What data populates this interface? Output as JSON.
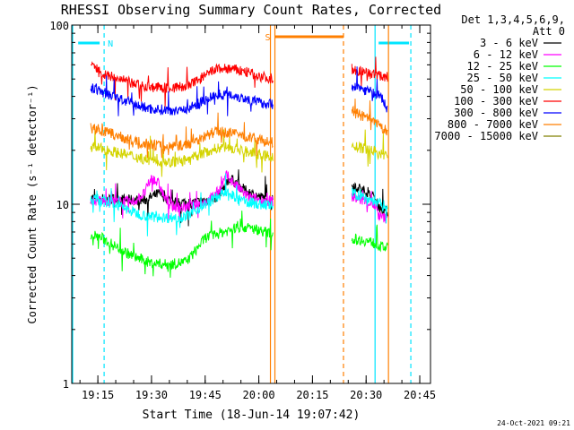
{
  "chart_data": {
    "type": "line",
    "title": "RHESSI Observing Summary Count Rates, Corrected",
    "xlabel": "Start Time (18-Jun-14 19:07:42)",
    "ylabel": "Corrected Count Rate (s⁻¹ detector⁻¹)",
    "y_scale": "log",
    "ylim": [
      1,
      100
    ],
    "xlim": [
      "19:07:42",
      "20:48:00"
    ],
    "x_ticks": [
      "19:15",
      "19:30",
      "19:45",
      "20:00",
      "20:15",
      "20:30",
      "20:45"
    ],
    "y_ticks": [
      "1",
      "10",
      "100"
    ],
    "legend": {
      "header": [
        "Det 1,3,4,5,6,9,",
        "Att 0"
      ],
      "placement": "right"
    },
    "flags": [
      {
        "label": "N",
        "color": "#00e5ff",
        "start": "19:09:30",
        "end": "19:16:45"
      },
      {
        "label": "S",
        "color": "#ff7f00",
        "start": "20:04:30",
        "end": "20:23:40"
      }
    ],
    "x_markers": [
      {
        "time": "19:06:30",
        "style": "solid",
        "color": "#00e5ff"
      },
      {
        "time": "19:16:45",
        "style": "dashed",
        "color": "#00e5ff"
      },
      {
        "time": "20:03:15",
        "style": "solid",
        "color": "#ff7f00"
      },
      {
        "time": "20:04:30",
        "style": "solid",
        "color": "#ff7f00"
      },
      {
        "time": "20:23:40",
        "style": "dashed",
        "color": "#ff7f00"
      },
      {
        "time": "20:32:30",
        "style": "solid",
        "color": "#00e5ff"
      },
      {
        "time": "20:36:15",
        "style": "solid",
        "color": "#ff7f00"
      },
      {
        "time": "20:42:30",
        "style": "dashed",
        "color": "#00e5ff"
      }
    ],
    "series": [
      {
        "name": "3 - 6 keV",
        "color": "#000000",
        "segments": [
          {
            "x": [
              "19:13",
              "19:28",
              "19:32",
              "19:36",
              "19:42",
              "19:48",
              "19:52",
              "19:56",
              "20:00",
              "20:04"
            ],
            "y": [
              10.8,
              10.5,
              11.5,
              10.3,
              10.2,
              10.8,
              14.0,
              12.0,
              11.0,
              10.5
            ]
          },
          {
            "x": [
              "20:26",
              "20:29",
              "20:32",
              "20:34",
              "20:36"
            ],
            "y": [
              13.0,
              12.0,
              11.0,
              9.5,
              9.0
            ]
          }
        ]
      },
      {
        "name": "6 - 12 keV",
        "color": "#ff00ff",
        "segments": [
          {
            "x": [
              "19:13",
              "19:25",
              "19:28",
              "19:30",
              "19:32",
              "19:34",
              "19:36",
              "19:40",
              "19:46",
              "19:49",
              "19:51",
              "19:54",
              "19:57",
              "20:00",
              "20:04"
            ],
            "y": [
              10.5,
              10.3,
              11.5,
              14.0,
              13.0,
              10.5,
              9.7,
              9.6,
              10.5,
              12.0,
              14.5,
              12.5,
              11.0,
              10.6,
              10.4
            ]
          },
          {
            "x": [
              "20:26",
              "20:29",
              "20:32",
              "20:34",
              "20:36"
            ],
            "y": [
              11.0,
              10.5,
              10.0,
              8.5,
              8.3
            ]
          }
        ]
      },
      {
        "name": "12 - 25 keV",
        "color": "#00ff00",
        "segments": [
          {
            "x": [
              "19:13",
              "19:16",
              "19:20",
              "19:25",
              "19:30",
              "19:35",
              "19:40",
              "19:45",
              "19:50",
              "19:55",
              "20:00",
              "20:04"
            ],
            "y": [
              6.8,
              6.5,
              5.8,
              5.1,
              4.7,
              4.6,
              4.8,
              6.5,
              7.0,
              7.5,
              7.2,
              6.8
            ]
          },
          {
            "x": [
              "20:26",
              "20:29",
              "20:32",
              "20:34",
              "20:36"
            ],
            "y": [
              6.4,
              6.3,
              6.1,
              5.8,
              5.7
            ]
          }
        ]
      },
      {
        "name": "25 - 50 keV",
        "color": "#00ffff",
        "segments": [
          {
            "x": [
              "19:13",
              "19:20",
              "19:25",
              "19:30",
              "19:35",
              "19:40",
              "19:45",
              "19:50",
              "19:55",
              "20:00",
              "20:04"
            ],
            "y": [
              10.8,
              10.0,
              9.0,
              8.5,
              8.4,
              8.6,
              10.0,
              11.5,
              10.5,
              10.0,
              9.8
            ]
          },
          {
            "x": [
              "20:26",
              "20:29",
              "20:32",
              "20:34",
              "20:36"
            ],
            "y": [
              11.5,
              11.0,
              10.5,
              10.0,
              9.8
            ]
          }
        ]
      },
      {
        "name": "50 - 100 keV",
        "color": "#d4d400",
        "segments": [
          {
            "x": [
              "19:13",
              "19:18",
              "19:25",
              "19:30",
              "19:35",
              "19:40",
              "19:45",
              "19:50",
              "19:55",
              "20:00",
              "20:04"
            ],
            "y": [
              21.0,
              20.0,
              18.5,
              17.5,
              17.2,
              17.5,
              19.5,
              21.0,
              20.0,
              19.0,
              18.3
            ]
          },
          {
            "x": [
              "20:26",
              "20:29",
              "20:32",
              "20:34",
              "20:36"
            ],
            "y": [
              21.0,
              20.5,
              20.0,
              19.0,
              18.8
            ]
          }
        ]
      },
      {
        "name": "100 - 300 keV",
        "color": "#ff0000",
        "segments": [
          {
            "x": [
              "19:13",
              "19:14",
              "19:18",
              "19:25",
              "19:30",
              "19:35",
              "19:40",
              "19:45",
              "19:48",
              "19:52",
              "19:56",
              "20:00",
              "20:04"
            ],
            "y": [
              60.0,
              58.0,
              52.0,
              47.0,
              45.0,
              44.5,
              45.5,
              52.0,
              57.0,
              57.0,
              55.0,
              52.0,
              50.0
            ]
          },
          {
            "x": [
              "20:26",
              "20:29",
              "20:32",
              "20:34",
              "20:36"
            ],
            "y": [
              57.0,
              55.0,
              53.0,
              52.0,
              51.0
            ]
          }
        ]
      },
      {
        "name": "300 - 800 keV",
        "color": "#0000ff",
        "segments": [
          {
            "x": [
              "19:13",
              "19:18",
              "19:25",
              "19:30",
              "19:35",
              "19:40",
              "19:45",
              "19:48",
              "19:52",
              "19:56",
              "20:00",
              "20:04"
            ],
            "y": [
              45.0,
              41.0,
              36.0,
              34.0,
              33.5,
              34.0,
              38.0,
              41.0,
              41.0,
              39.0,
              37.0,
              36.0
            ]
          },
          {
            "x": [
              "20:26",
              "20:29",
              "20:32",
              "20:34",
              "20:36"
            ],
            "y": [
              46.0,
              44.0,
              42.0,
              40.0,
              34.0
            ]
          }
        ]
      },
      {
        "name": "800 - 7000 keV",
        "color": "#ff7f00",
        "segments": [
          {
            "x": [
              "19:13",
              "19:18",
              "19:25",
              "19:30",
              "19:35",
              "19:40",
              "19:45",
              "19:48",
              "19:52",
              "19:56",
              "20:00",
              "20:04"
            ],
            "y": [
              27.0,
              25.0,
              22.5,
              21.5,
              21.0,
              21.5,
              24.0,
              25.5,
              25.0,
              24.0,
              23.0,
              22.0
            ]
          },
          {
            "x": [
              "20:26",
              "20:29",
              "20:32",
              "20:34",
              "20:36"
            ],
            "y": [
              33.0,
              31.0,
              29.0,
              27.0,
              25.5
            ]
          }
        ]
      },
      {
        "name": "7000 - 15000 keV",
        "color": "#808000",
        "segments": []
      }
    ]
  },
  "footer": {
    "date": "24-Oct-2021 09:21"
  }
}
